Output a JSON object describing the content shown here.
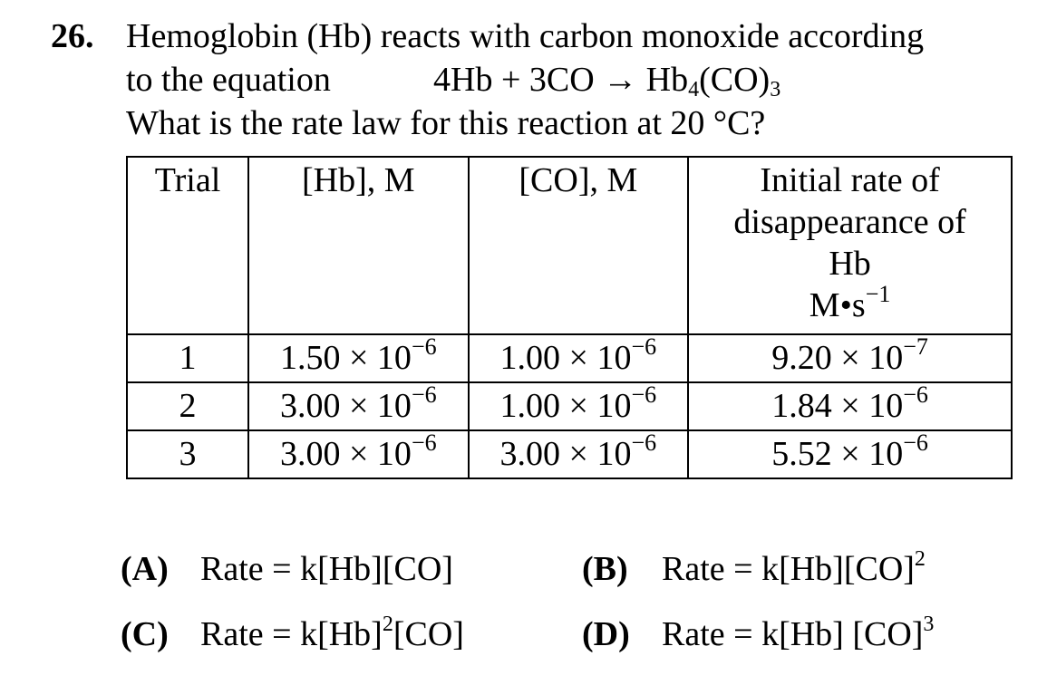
{
  "question": {
    "number": "26.",
    "line1": "Hemoglobin (Hb) reacts with carbon monoxide according",
    "line2": "to the equation",
    "equation": {
      "lhs": "4Hb + 3CO → Hb",
      "sub1": "4",
      "mid": "(CO)",
      "sub2": "3"
    },
    "line3": "What is the rate law for this reaction at 20 °C?"
  },
  "table": {
    "headers": {
      "trial": "Trial",
      "hb": "[Hb], M",
      "co": "[CO], M",
      "rate_line1": "Initial rate of",
      "rate_line2": "disappearance of",
      "rate_line3": "Hb",
      "rate_unit": "M•s",
      "rate_unit_exp": "−1"
    },
    "rows": [
      {
        "trial": "1",
        "hb": "1.50 × 10",
        "hb_exp": "−6",
        "co": "1.00 × 10",
        "co_exp": "−6",
        "rate": "9.20 × 10",
        "rate_exp": "−7"
      },
      {
        "trial": "2",
        "hb": "3.00 × 10",
        "hb_exp": "−6",
        "co": "1.00 × 10",
        "co_exp": "−6",
        "rate": "1.84 × 10",
        "rate_exp": "−6"
      },
      {
        "trial": "3",
        "hb": "3.00 × 10",
        "hb_exp": "−6",
        "co": "3.00 × 10",
        "co_exp": "−6",
        "rate": "5.52 × 10",
        "rate_exp": "−6"
      }
    ]
  },
  "choices": {
    "a": {
      "letter": "(A)",
      "text": "Rate = k[Hb][CO]"
    },
    "b": {
      "letter": "(B)",
      "text": "Rate = k[Hb][CO]",
      "exp": "2"
    },
    "c": {
      "letter": "(C)",
      "text_pre": "Rate = k[Hb]",
      "exp": "2",
      "text_post": "[CO]"
    },
    "d": {
      "letter": "(D)",
      "text": "Rate = k[Hb] [CO]",
      "exp": "3"
    }
  }
}
